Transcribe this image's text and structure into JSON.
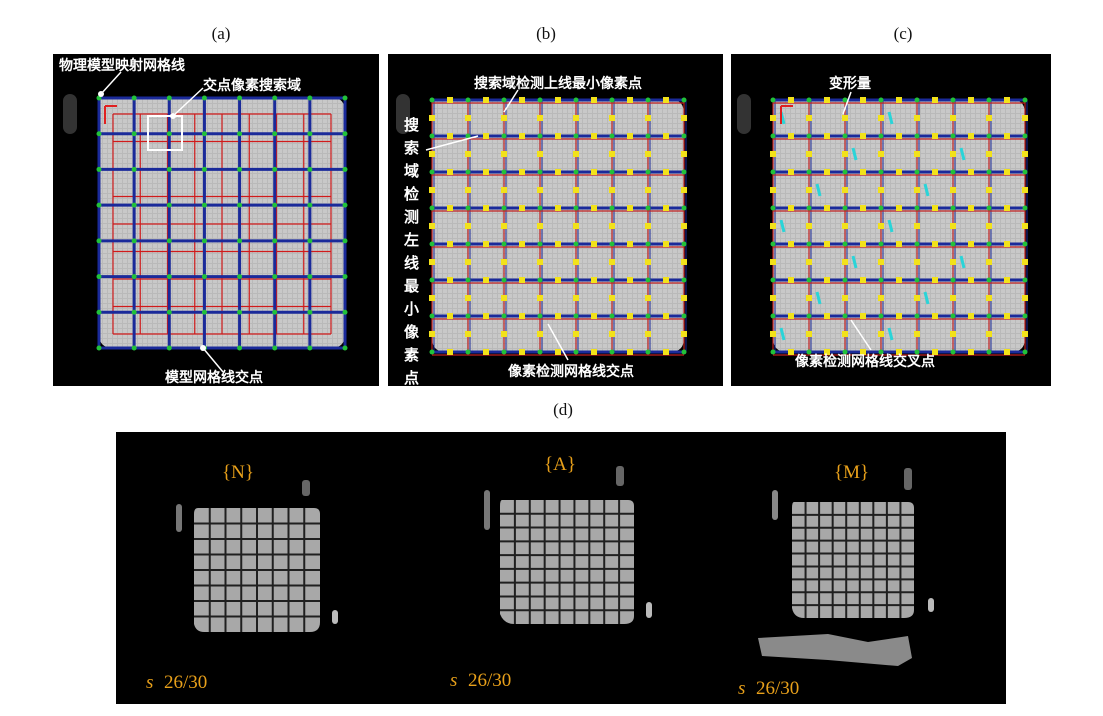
{
  "captions": {
    "a": "(a)",
    "b": "(b)",
    "c": "(c)",
    "d": "(d)"
  },
  "panel_a": {
    "label_model_lines": "物理模型映射网格线",
    "label_search_domain": "交点像素搜索域",
    "label_intersection": "模型网格线交点"
  },
  "panel_b": {
    "label_top_min": "搜索域检测上线最小像素点",
    "label_left_min": [
      "搜",
      "索",
      "域",
      "检",
      "测",
      "左",
      "线",
      "最",
      "小",
      "像",
      "素",
      "点"
    ],
    "label_intersection": "像素检测网格线交点"
  },
  "panel_c": {
    "label_deformation": "变形量",
    "label_cross_point": "像素检测网格线交叉点"
  },
  "panel_d": {
    "images": [
      {
        "title": "{N}",
        "slice_prefix": "s",
        "slice_value": "26/30"
      },
      {
        "title": "{A}",
        "slice_prefix": "s",
        "slice_value": "26/30"
      },
      {
        "title": "{M}",
        "slice_prefix": "s",
        "slice_value": "26/30"
      }
    ]
  },
  "colors": {
    "grid_blue": "#1a2a9a",
    "grid_red": "#d01a1a",
    "node_green": "#22c23a",
    "point_yellow": "#f2e21a",
    "arrow_cyan": "#2ad4d8",
    "accent_orange": "#e8a01a"
  }
}
